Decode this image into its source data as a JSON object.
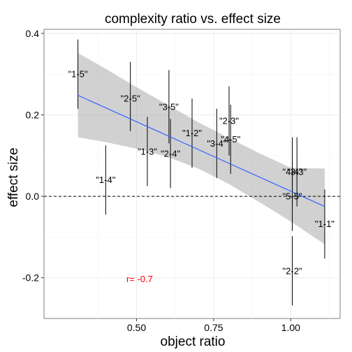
{
  "chart_data": {
    "type": "scatter",
    "title": "complexity ratio vs. effect size",
    "xlabel": "object ratio",
    "ylabel": "effect size",
    "xlim": [
      0.2,
      1.16
    ],
    "ylim": [
      -0.3,
      0.41
    ],
    "x_ticks": [
      0.5,
      0.75,
      1.0
    ],
    "x_tick_labels": [
      "0.50",
      "0.75",
      "1.00"
    ],
    "y_ticks": [
      -0.2,
      0.0,
      0.2,
      0.4
    ],
    "y_tick_labels": [
      "-0.2",
      "0.0",
      "0.2",
      "0.4"
    ],
    "grid": true,
    "reference_line": {
      "y": 0,
      "style": "dashed"
    },
    "points": [
      {
        "label": "\"1-5\"",
        "x": 0.31,
        "y": 0.3,
        "ymin": 0.215,
        "ymax": 0.385
      },
      {
        "label": "\"2-5\"",
        "x": 0.48,
        "y": 0.24,
        "ymin": 0.16,
        "ymax": 0.33
      },
      {
        "label": "\"3-5\"",
        "x": 0.605,
        "y": 0.22,
        "ymin": 0.13,
        "ymax": 0.31
      },
      {
        "label": "\"1-2\"",
        "x": 0.68,
        "y": 0.155,
        "ymin": 0.07,
        "ymax": 0.24
      },
      {
        "label": "\"2-3\"",
        "x": 0.8,
        "y": 0.185,
        "ymin": 0.1,
        "ymax": 0.27
      },
      {
        "label": "\"3-4\"",
        "x": 0.76,
        "y": 0.13,
        "ymin": 0.045,
        "ymax": 0.215
      },
      {
        "label": "\"4-5\"",
        "x": 0.805,
        "y": 0.14,
        "ymin": 0.055,
        "ymax": 0.225
      },
      {
        "label": "\"1-3\"",
        "x": 0.535,
        "y": 0.11,
        "ymin": 0.025,
        "ymax": 0.195
      },
      {
        "label": "\"2-4\"",
        "x": 0.61,
        "y": 0.105,
        "ymin": 0.02,
        "ymax": 0.19
      },
      {
        "label": "\"1-4\"",
        "x": 0.4,
        "y": 0.04,
        "ymin": -0.045,
        "ymax": 0.125
      },
      {
        "label": "\"4-4\"",
        "x": 1.005,
        "y": 0.06,
        "ymin": -0.025,
        "ymax": 0.145
      },
      {
        "label": "\"3-3\"",
        "x": 1.02,
        "y": 0.06,
        "ymin": -0.025,
        "ymax": 0.145
      },
      {
        "label": "\"5-5\"",
        "x": 1.005,
        "y": 0.0,
        "ymin": -0.085,
        "ymax": 0.085
      },
      {
        "label": "\"1-1\"",
        "x": 1.11,
        "y": -0.068,
        "ymin": -0.153,
        "ymax": 0.017
      },
      {
        "label": "\"2-2\"",
        "x": 1.005,
        "y": -0.183,
        "ymin": -0.268,
        "ymax": -0.098
      }
    ],
    "regression": {
      "x": [
        0.31,
        1.11
      ],
      "y": [
        0.248,
        -0.025
      ],
      "band": {
        "x": [
          0.31,
          0.4,
          0.5,
          0.6,
          0.7,
          0.8,
          0.9,
          1.0,
          1.11
        ],
        "lower": [
          0.145,
          0.133,
          0.117,
          0.097,
          0.068,
          0.03,
          -0.015,
          -0.062,
          -0.118
        ],
        "upper": [
          0.352,
          0.313,
          0.268,
          0.225,
          0.182,
          0.143,
          0.105,
          0.07,
          0.068
        ]
      }
    },
    "annotation": {
      "text": "r= -0.7",
      "x": 0.51,
      "y": -0.203,
      "color": "#ff0000"
    },
    "colors": {
      "line": "#3366ff",
      "band": "#999999",
      "errorbar": "#000000",
      "annotation": "#ff0000"
    }
  }
}
